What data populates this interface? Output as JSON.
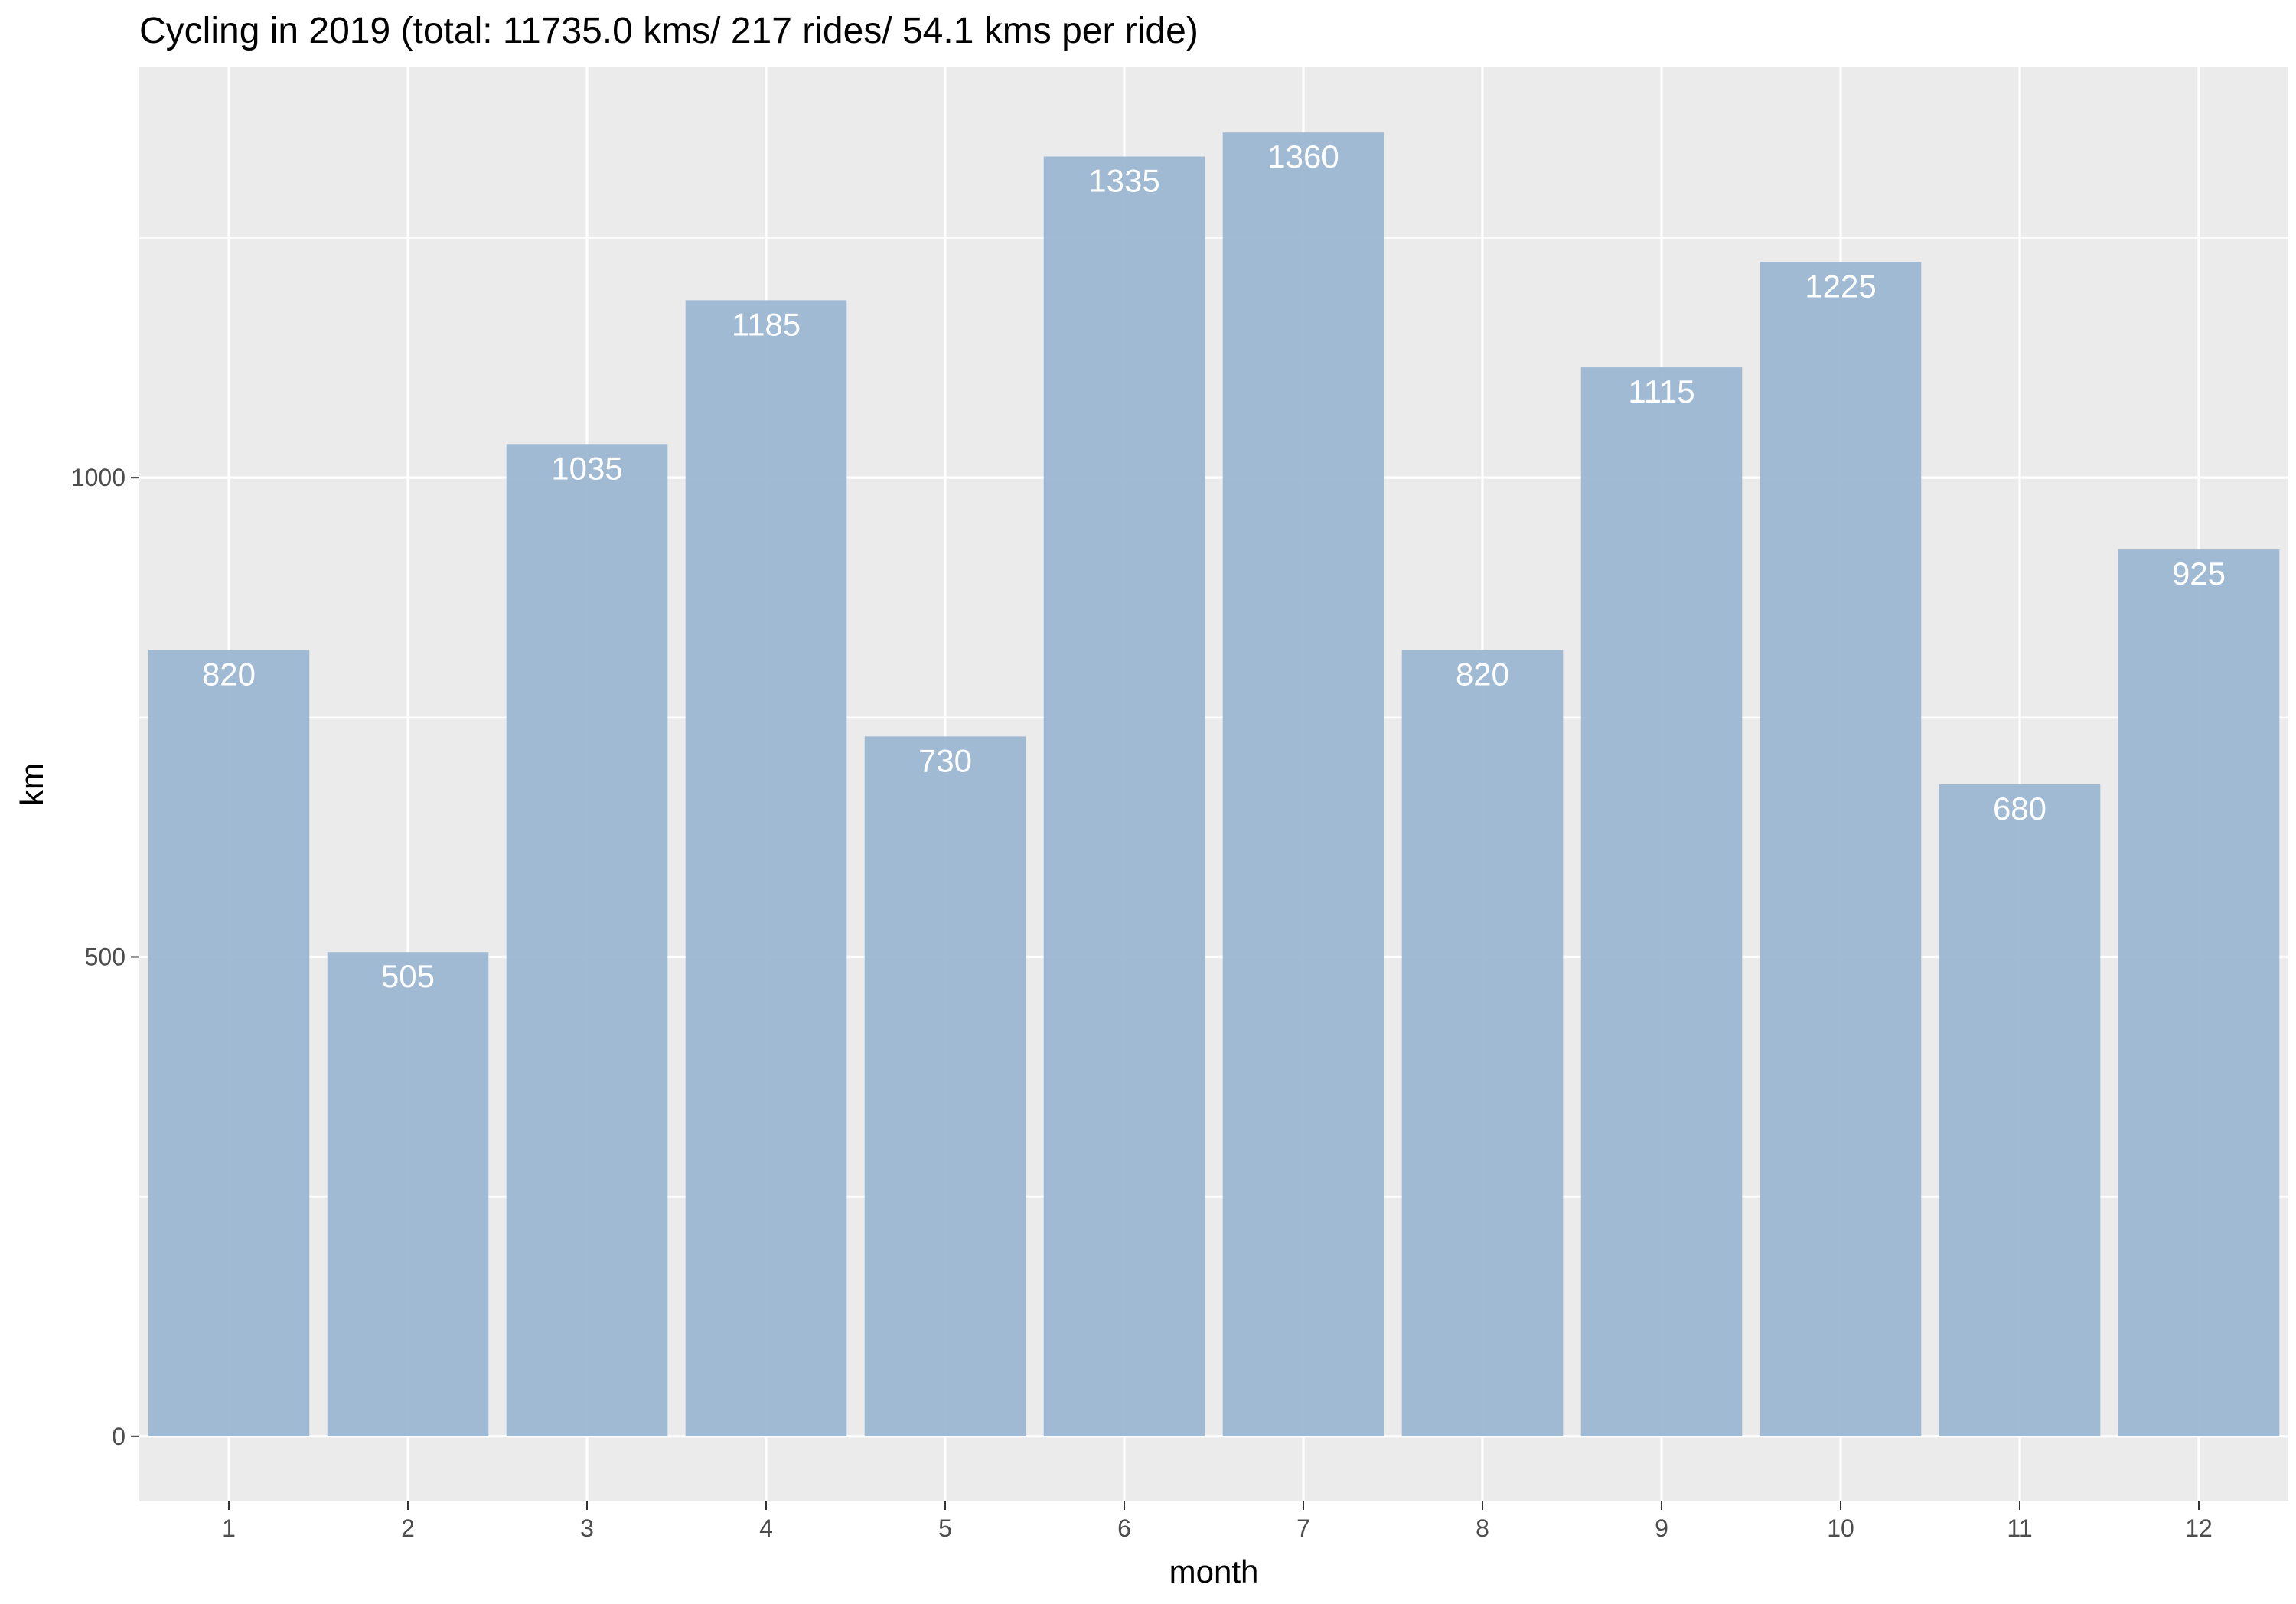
{
  "chart_data": {
    "type": "bar",
    "title": "Cycling in 2019 (total: 11735.0 kms/ 217 rides/ 54.1 kms per ride)",
    "xlabel": "month",
    "ylabel": "km",
    "categories": [
      "1",
      "2",
      "3",
      "4",
      "5",
      "6",
      "7",
      "8",
      "9",
      "10",
      "11",
      "12"
    ],
    "values": [
      820,
      505,
      1035,
      1185,
      730,
      1335,
      1360,
      820,
      1115,
      1225,
      680,
      925
    ],
    "data_labels": [
      "820",
      "505",
      "1035",
      "1185",
      "730",
      "1335",
      "1360",
      "820",
      "1115",
      "1225",
      "680",
      "925"
    ],
    "y_ticks": [
      0,
      500,
      1000
    ],
    "y_tick_labels": [
      "0",
      "500",
      "1000"
    ],
    "ylim": [
      -68,
      1428
    ],
    "grid": true,
    "legend": "none",
    "colors": {
      "bar": "#99b5d1",
      "panel": "#ebebeb",
      "grid": "#ffffff"
    }
  }
}
